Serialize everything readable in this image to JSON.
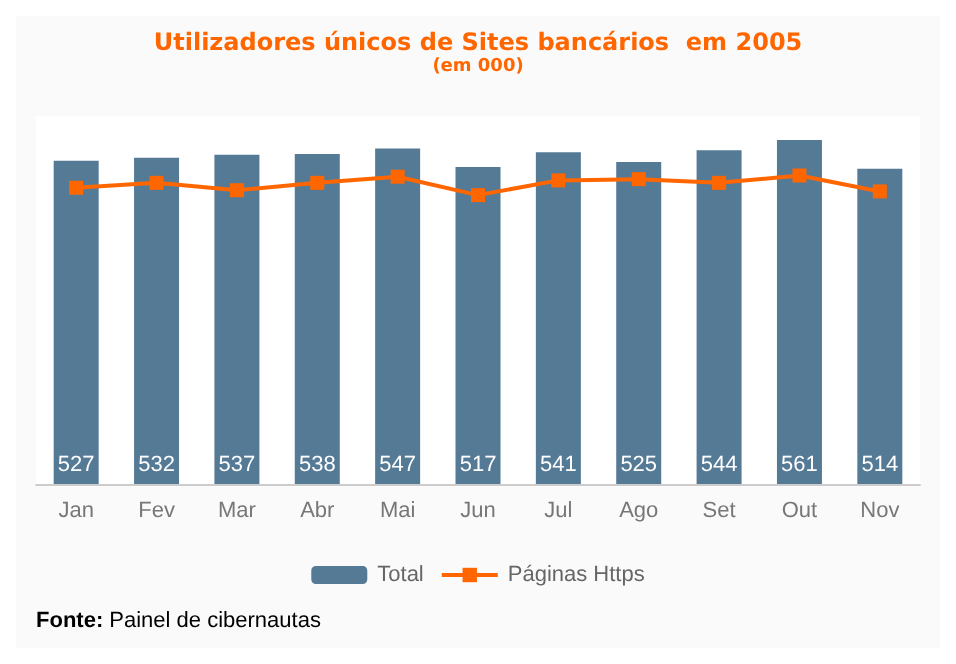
{
  "chart_data": {
    "type": "bar",
    "title": "Utilizadores únicos de Sites bancários  em 2005",
    "subtitle": "(em 000)",
    "categories": [
      "Jan",
      "Fev",
      "Mar",
      "Abr",
      "Mai",
      "Jun",
      "Jul",
      "Ago",
      "Set",
      "Out",
      "Nov"
    ],
    "series": [
      {
        "name": "Total",
        "color": "#557a96",
        "values": [
          527,
          532,
          537,
          538,
          547,
          517,
          541,
          525,
          544,
          561,
          514
        ],
        "data_labels": true
      },
      {
        "name": "Páginas Https",
        "type": "line",
        "color": "#ff6600",
        "marker": "square",
        "values": [
          483,
          491,
          479,
          491,
          501,
          471,
          495,
          497,
          491,
          503,
          477
        ]
      }
    ],
    "legend": "bottom",
    "annotations": [
      "Fonte: Painel de cibernautas"
    ]
  }
}
